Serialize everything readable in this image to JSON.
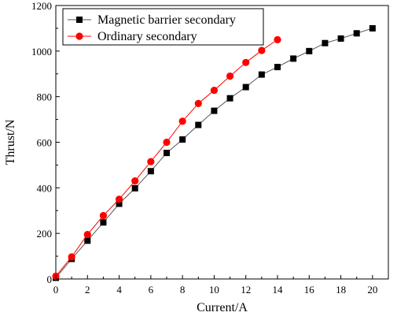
{
  "chart_data": {
    "type": "line",
    "xlabel": "Current/A",
    "ylabel": "Thrust/N",
    "xlim": [
      0,
      21
    ],
    "ylim": [
      0,
      1200
    ],
    "xticks": [
      0,
      2,
      4,
      6,
      8,
      10,
      12,
      14,
      16,
      18,
      20
    ],
    "yticks": [
      0,
      200,
      400,
      600,
      800,
      1000,
      1200
    ],
    "grid": false,
    "legend_position": "top-left",
    "series": [
      {
        "name": "Magnetic barrier secondary",
        "marker": "square",
        "color": "#000000",
        "line_color": "#555555",
        "x": [
          0,
          1,
          2,
          3,
          4,
          5,
          6,
          7,
          8,
          9,
          10,
          11,
          12,
          13,
          14,
          15,
          16,
          17,
          18,
          19,
          20
        ],
        "y": [
          5,
          88,
          168,
          248,
          330,
          398,
          473,
          553,
          612,
          676,
          738,
          793,
          842,
          897,
          930,
          967,
          1000,
          1035,
          1055,
          1078,
          1100
        ]
      },
      {
        "name": "Ordinary secondary",
        "marker": "circle",
        "color": "#ff0000",
        "line_color": "#ff0000",
        "x": [
          0,
          1,
          2,
          3,
          4,
          5,
          6,
          7,
          8,
          9,
          10,
          11,
          12,
          13,
          14
        ],
        "y": [
          12,
          97,
          195,
          278,
          350,
          430,
          515,
          600,
          692,
          770,
          828,
          890,
          950,
          1003,
          1050
        ]
      }
    ]
  }
}
